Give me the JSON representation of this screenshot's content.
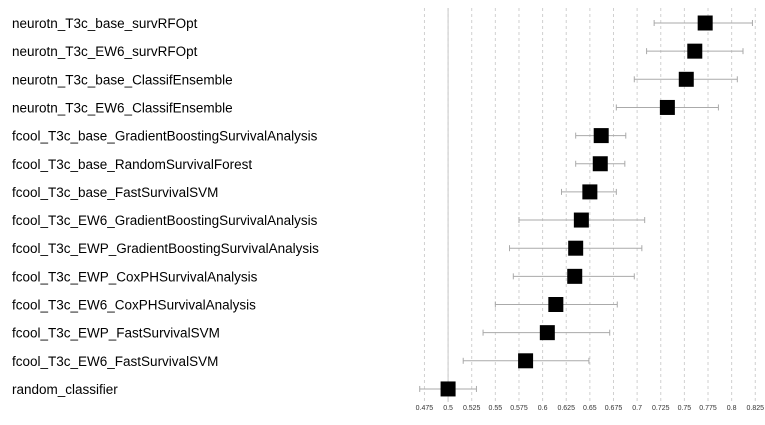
{
  "chart_data": {
    "type": "forest",
    "title": "",
    "xlabel": "",
    "ylabel": "",
    "xlim": [
      0.465,
      0.83
    ],
    "reference_line": 0.5,
    "grid": true,
    "xticks": [
      "0.475",
      "0.5",
      "0.525",
      "0.55",
      "0.575",
      "0.6",
      "0.625",
      "0.65",
      "0.675",
      "0.7",
      "0.725",
      "0.75",
      "0.775",
      "0.8",
      "0.825"
    ],
    "rows": [
      {
        "label": "neurotn_T3c_base_survRFOpt",
        "estimate": 0.772,
        "lower": 0.718,
        "upper": 0.822
      },
      {
        "label": "neurotn_T3c_EW6_survRFOpt",
        "estimate": 0.761,
        "lower": 0.71,
        "upper": 0.812
      },
      {
        "label": "neurotn_T3c_base_ClassifEnsemble",
        "estimate": 0.752,
        "lower": 0.697,
        "upper": 0.806
      },
      {
        "label": "neurotn_T3c_EW6_ClassifEnsemble",
        "estimate": 0.732,
        "lower": 0.678,
        "upper": 0.786
      },
      {
        "label": "fcool_T3c_base_GradientBoostingSurvivalAnalysis",
        "estimate": 0.662,
        "lower": 0.635,
        "upper": 0.688
      },
      {
        "label": "fcool_T3c_base_RandomSurvivalForest",
        "estimate": 0.661,
        "lower": 0.635,
        "upper": 0.687
      },
      {
        "label": "fcool_T3c_base_FastSurvivalSVM",
        "estimate": 0.65,
        "lower": 0.62,
        "upper": 0.678
      },
      {
        "label": "fcool_T3c_EW6_GradientBoostingSurvivalAnalysis",
        "estimate": 0.641,
        "lower": 0.575,
        "upper": 0.708
      },
      {
        "label": "fcool_T3c_EWP_GradientBoostingSurvivalAnalysis",
        "estimate": 0.635,
        "lower": 0.565,
        "upper": 0.705
      },
      {
        "label": "fcool_T3c_EWP_CoxPHSurvivalAnalysis",
        "estimate": 0.634,
        "lower": 0.569,
        "upper": 0.697
      },
      {
        "label": "fcool_T3c_EW6_CoxPHSurvivalAnalysis",
        "estimate": 0.614,
        "lower": 0.55,
        "upper": 0.679
      },
      {
        "label": "fcool_T3c_EWP_FastSurvivalSVM",
        "estimate": 0.605,
        "lower": 0.537,
        "upper": 0.671
      },
      {
        "label": "fcool_T3c_EW6_FastSurvivalSVM",
        "estimate": 0.582,
        "lower": 0.516,
        "upper": 0.649
      },
      {
        "label": "random_classifier",
        "estimate": 0.5,
        "lower": 0.47,
        "upper": 0.53
      }
    ]
  }
}
